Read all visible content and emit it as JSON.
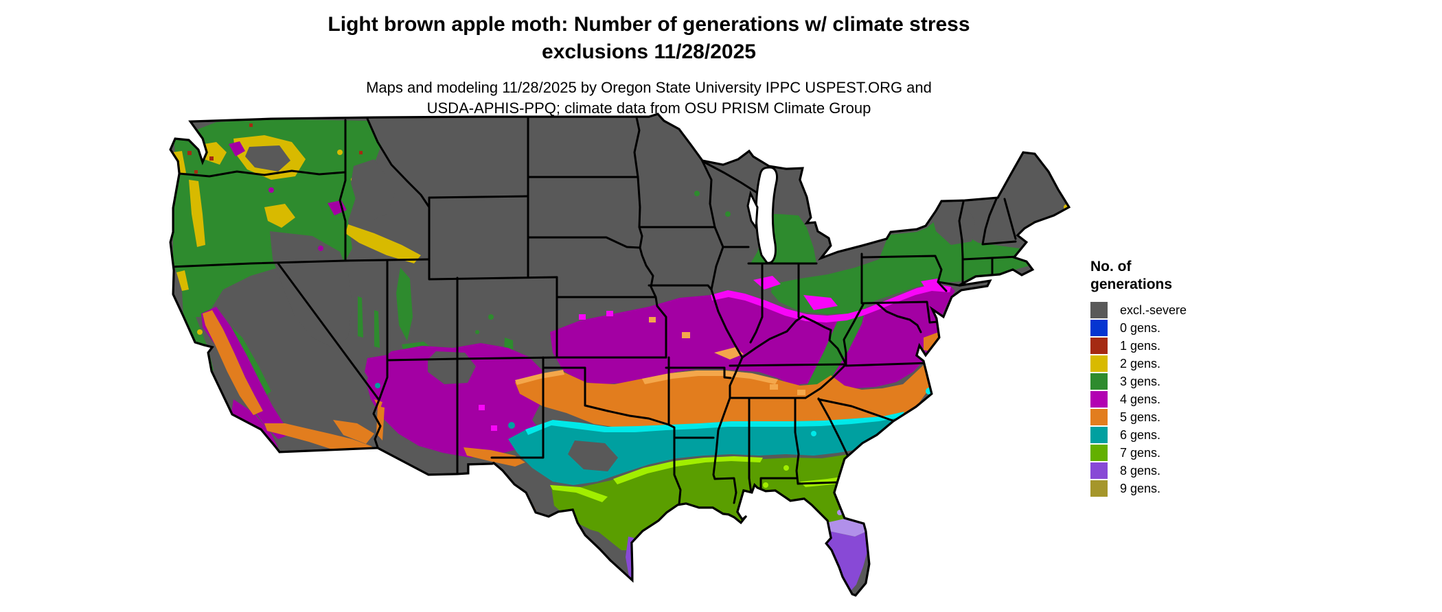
{
  "header": {
    "title_line1": "Light brown apple moth: Number of generations w/ climate stress",
    "title_line2": "exclusions 11/28/2025",
    "subtitle_line1": "Maps and modeling 11/28/2025 by Oregon State University IPPC USPEST.ORG and",
    "subtitle_line2": "USDA-APHIS-PPQ; climate data from OSU PRISM Climate Group"
  },
  "legend": {
    "title_line1": "No. of",
    "title_line2": "generations",
    "items": [
      {
        "label": "excl.-severe",
        "color": "#595959"
      },
      {
        "label": "0 gens.",
        "color": "#0535d1"
      },
      {
        "label": "1 gens.",
        "color": "#a52a12"
      },
      {
        "label": "2 gens.",
        "color": "#d8ba00"
      },
      {
        "label": "3 gens.",
        "color": "#2e8b2e"
      },
      {
        "label": "4 gens.",
        "color": "#b201b2"
      },
      {
        "label": "5 gens.",
        "color": "#e27d1e"
      },
      {
        "label": "6 gens.",
        "color": "#00a0a0"
      },
      {
        "label": "7 gens.",
        "color": "#63b000"
      },
      {
        "label": "8 gens.",
        "color": "#8849d6"
      },
      {
        "label": "9 gens.",
        "color": "#a5962b"
      }
    ]
  },
  "map": {
    "region": "Continental United States",
    "kind": "raster choropleth of modeled insect generations with state borders",
    "colors": {
      "excl": "#595959",
      "gen1": "#a52a12",
      "gen2": "#d8ba00",
      "gen3": "#2e8b2e",
      "gen4": "#a300a3",
      "gen5": "#e27d1e",
      "gen6": "#00a0a0",
      "gen7": "#5a9e00",
      "gen8": "#8849d6",
      "gen9": "#a5962b",
      "border": "#000000",
      "water": "#ffffff"
    },
    "transition_colors": {
      "gen4_bright": "#f806f8",
      "gen5_light": "#f4a74b",
      "gen6_bright": "#00e9e9",
      "gen7_bright": "#a2ee00",
      "gen8_light": "#b190ea"
    }
  }
}
